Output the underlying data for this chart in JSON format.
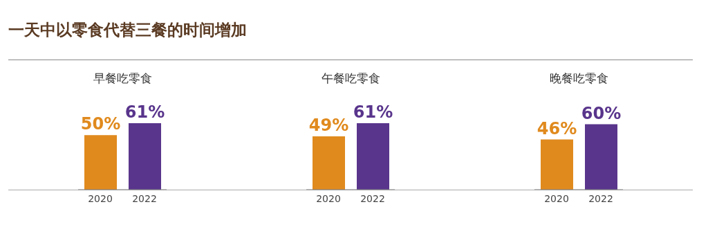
{
  "chart_data": [
    {
      "type": "other",
      "title": "一天中以零食代替三餐的时间增加"
    },
    {
      "type": "bar",
      "title": "早餐吃零食",
      "categories": [
        "2020",
        "2022"
      ],
      "values": [
        50,
        61
      ],
      "colors": [
        "#e08a1e",
        "#59358c"
      ],
      "value_labels": [
        "50%",
        "61%"
      ]
    },
    {
      "type": "bar",
      "title": "午餐吃零食",
      "categories": [
        "2020",
        "2022"
      ],
      "values": [
        49,
        61
      ],
      "colors": [
        "#e08a1e",
        "#59358c"
      ],
      "value_labels": [
        "49%",
        "61%"
      ]
    },
    {
      "type": "bar",
      "title": "晚餐吃零食",
      "categories": [
        "2020",
        "2022"
      ],
      "values": [
        46,
        60
      ],
      "colors": [
        "#e08a1e",
        "#59358c"
      ],
      "value_labels": [
        "46%",
        "60%"
      ]
    }
  ]
}
